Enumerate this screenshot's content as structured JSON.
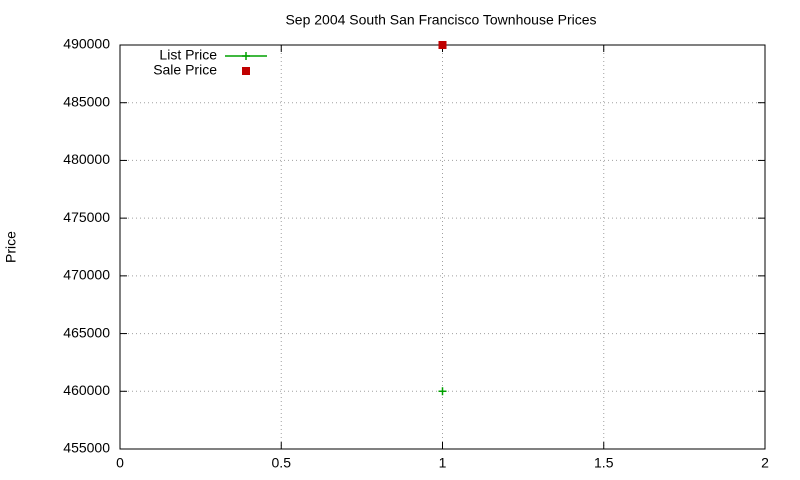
{
  "chart_data": {
    "type": "line",
    "title": "Sep 2004 South San Francisco Townhouse Prices",
    "y_label": "Price",
    "x": [
      1
    ],
    "series": [
      {
        "name": "List Price",
        "color": "#00a000",
        "marker": "plus",
        "line": true,
        "values": [
          460000
        ]
      },
      {
        "name": "Sale Price",
        "color": "#c00000",
        "marker": "square",
        "line": false,
        "values": [
          490000
        ]
      }
    ],
    "xlim": [
      0,
      2
    ],
    "xticks": [
      0,
      0.5,
      1,
      1.5,
      2
    ],
    "ylim": [
      455000,
      490000
    ],
    "yticks": [
      455000,
      460000,
      465000,
      470000,
      475000,
      480000,
      485000,
      490000
    ],
    "grid": true,
    "legend": "top-left"
  }
}
